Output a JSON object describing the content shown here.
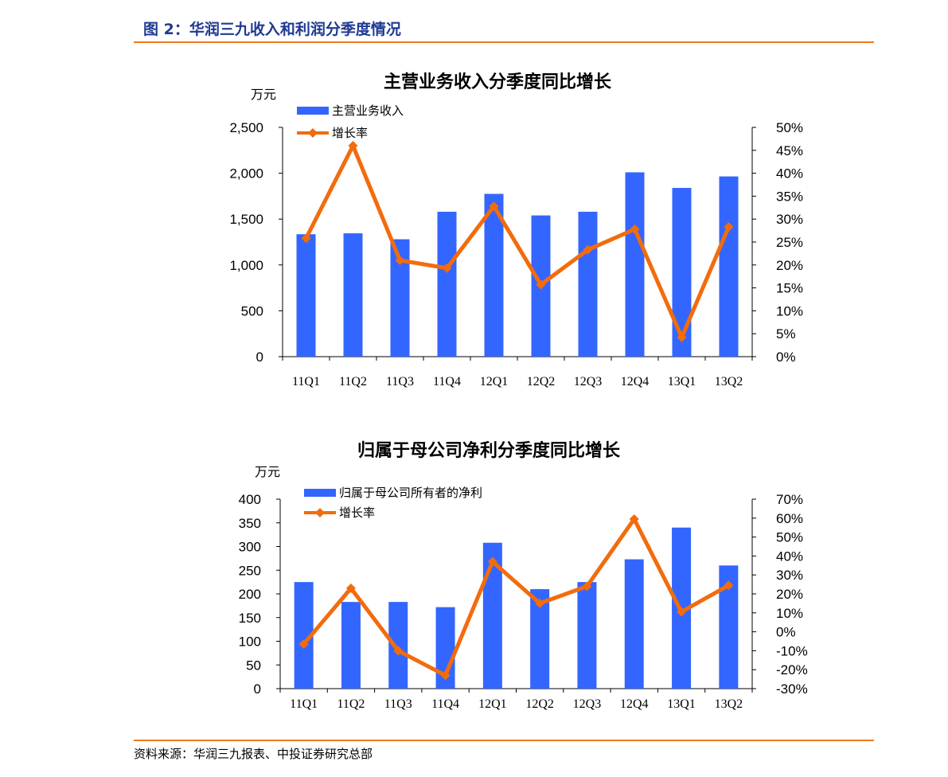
{
  "figure_title": "图 2：华润三九收入和利润分季度情况",
  "source_note": "资料来源：华润三九报表、中投证券研究总部",
  "colors": {
    "bar": "#3366ff",
    "line": "#f26c0d",
    "rule": "#f07a1e",
    "title": "#1f3a93"
  },
  "chart_data": [
    {
      "type": "bar",
      "title": "主营业务收入分季度同比增长",
      "ylabel": "万元",
      "categories": [
        "11Q1",
        "11Q2",
        "11Q3",
        "11Q4",
        "12Q1",
        "12Q2",
        "12Q3",
        "12Q4",
        "13Q1",
        "13Q2"
      ],
      "ylim": [
        0,
        2500
      ],
      "yticks": [
        "2,500",
        "2,000",
        "1,500",
        "1,000",
        "500",
        "0"
      ],
      "y2lim": [
        0,
        50
      ],
      "y2ticks": [
        "50%",
        "45%",
        "40%",
        "35%",
        "30%",
        "25%",
        "20%",
        "15%",
        "10%",
        "5%",
        "0%"
      ],
      "legend_position": "top-left",
      "series": [
        {
          "name": "主营业务收入",
          "type": "bar",
          "axis": "left",
          "values": [
            1335,
            1345,
            1280,
            1580,
            1775,
            1540,
            1580,
            2010,
            1840,
            1965
          ]
        },
        {
          "name": "增长率",
          "type": "line",
          "axis": "right",
          "values": [
            25.8,
            46.0,
            21.0,
            19.3,
            32.8,
            15.7,
            23.3,
            27.8,
            4.2,
            28.3
          ]
        }
      ]
    },
    {
      "type": "bar",
      "title": "归属于母公司净利分季度同比增长",
      "ylabel": "万元",
      "categories": [
        "11Q1",
        "11Q2",
        "11Q3",
        "11Q4",
        "12Q1",
        "12Q2",
        "12Q3",
        "12Q4",
        "13Q1",
        "13Q2"
      ],
      "ylim": [
        0,
        400
      ],
      "yticks": [
        "400",
        "350",
        "300",
        "250",
        "200",
        "150",
        "100",
        "50",
        "0"
      ],
      "y2lim": [
        -30,
        70
      ],
      "y2ticks": [
        "70%",
        "60%",
        "50%",
        "40%",
        "30%",
        "20%",
        "10%",
        "0%",
        "-10%",
        "-20%",
        "-30%"
      ],
      "legend_position": "top-left",
      "series": [
        {
          "name": "归属于母公司所有者的净利",
          "type": "bar",
          "axis": "left",
          "values": [
            225,
            183,
            183,
            172,
            308,
            210,
            225,
            273,
            340,
            260
          ]
        },
        {
          "name": "增长率",
          "type": "line",
          "axis": "right",
          "values": [
            -6.5,
            23.0,
            -10.0,
            -23.0,
            37.0,
            15.0,
            24.0,
            59.5,
            10.5,
            24.5
          ]
        }
      ]
    }
  ]
}
